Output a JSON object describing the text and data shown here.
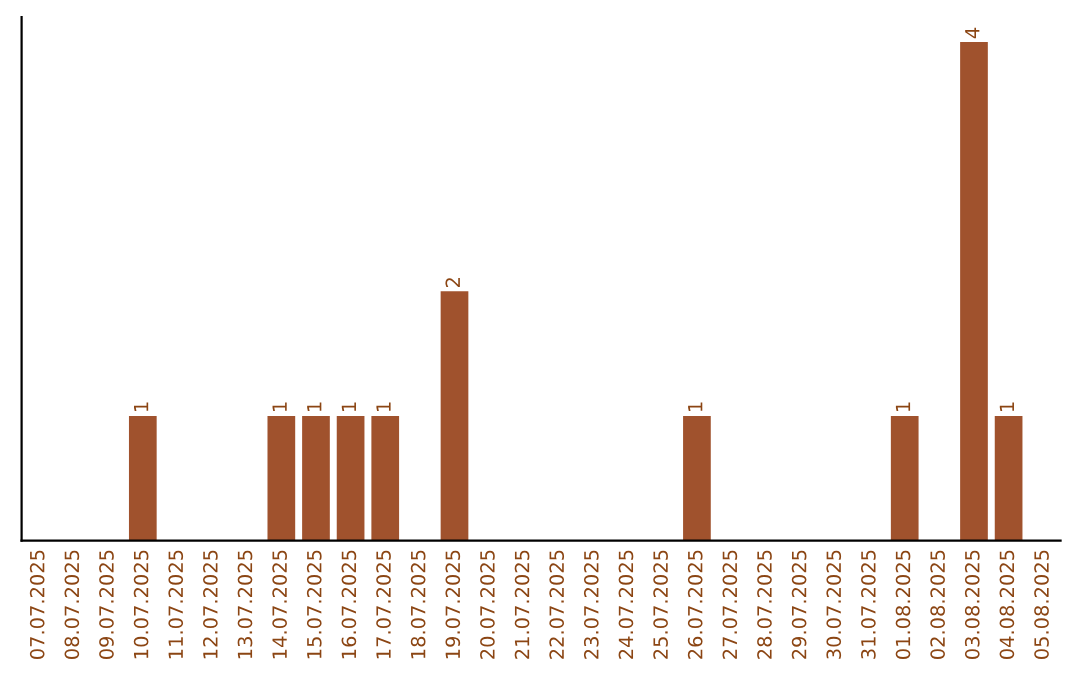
{
  "chart_data": {
    "type": "bar",
    "categories": [
      "07.07.2025",
      "08.07.2025",
      "09.07.2025",
      "10.07.2025",
      "11.07.2025",
      "12.07.2025",
      "13.07.2025",
      "14.07.2025",
      "15.07.2025",
      "16.07.2025",
      "17.07.2025",
      "18.07.2025",
      "19.07.2025",
      "20.07.2025",
      "21.07.2025",
      "22.07.2025",
      "23.07.2025",
      "24.07.2025",
      "25.07.2025",
      "26.07.2025",
      "27.07.2025",
      "28.07.2025",
      "29.07.2025",
      "30.07.2025",
      "31.07.2025",
      "01.08.2025",
      "02.08.2025",
      "03.08.2025",
      "04.08.2025",
      "05.08.2025"
    ],
    "values": [
      0,
      0,
      0,
      1,
      0,
      0,
      0,
      1,
      1,
      1,
      1,
      0,
      2,
      0,
      0,
      0,
      0,
      0,
      0,
      1,
      0,
      0,
      0,
      0,
      0,
      1,
      0,
      4,
      1,
      0
    ],
    "value_labels": [
      null,
      null,
      null,
      "1",
      null,
      null,
      null,
      "1",
      "1",
      "1",
      "1",
      null,
      "2",
      null,
      null,
      null,
      null,
      null,
      null,
      "1",
      null,
      null,
      null,
      null,
      null,
      "1",
      null,
      "4",
      "1",
      null
    ],
    "color": "#a0522d",
    "tick_labels": "x",
    "grid": false
  }
}
